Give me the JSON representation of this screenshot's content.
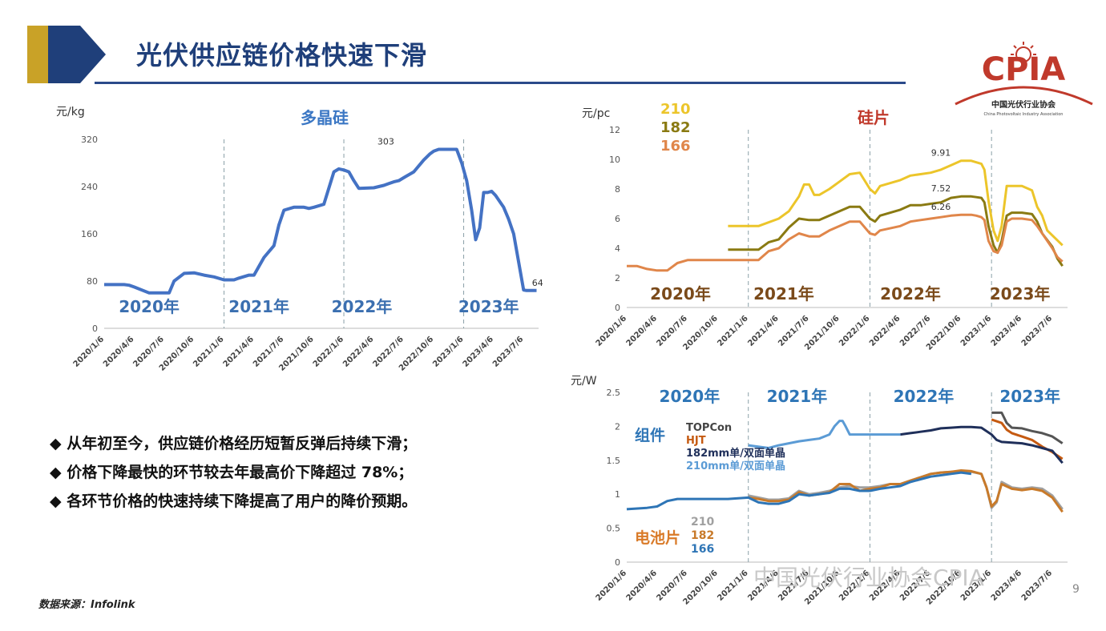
{
  "header": {
    "title": "光伏供应链价格快速下滑",
    "logo_text": "CPIA",
    "logo_cn": "中国光伏行业协会",
    "logo_en": "China Photovoltaic Industry Association",
    "gold": "#c9a227",
    "blue": "#1f3f7a"
  },
  "bullets": [
    "从年初至今，供应链价格经历短暂反弹后持续下滑；",
    "价格下降最快的环节较去年最高价下降超过 78%；",
    "各环节价格的快速持续下降提高了用户的降价预期。"
  ],
  "bullet_symbol": "◆",
  "source": "数据来源：Infolink",
  "watermark": "中国光伏行业协会CPIA",
  "page_number": "9",
  "chart_data": [
    {
      "id": "polysilicon",
      "type": "line",
      "title": "多晶硅",
      "ylabel": "元/kg",
      "ylim": [
        0,
        320
      ],
      "yticks": [
        "0",
        "80",
        "160",
        "240",
        "320"
      ],
      "ytick_values": [
        0,
        80,
        160,
        240,
        320
      ],
      "xlim": [
        0,
        43.5
      ],
      "xticks": [
        "2020/1/6",
        "2020/4/6",
        "2020/7/6",
        "2020/10/6",
        "2021/1/6",
        "2021/4/6",
        "2021/7/6",
        "2021/10/6",
        "2022/1/6",
        "2022/4/6",
        "2022/7/6",
        "2022/10/6",
        "2023/1/6",
        "2023/4/6",
        "2023/7/6"
      ],
      "year_labels": [
        "2020年",
        "2021年",
        "2022年",
        "2023年"
      ],
      "year_label_x": [
        4.5,
        15.5,
        25.8,
        38.5
      ],
      "dividers": [
        12,
        24,
        36
      ],
      "annotations": [
        {
          "text": "303",
          "x": 28.2,
          "y": 303
        },
        {
          "text": "64",
          "x": 43.4,
          "y": 64
        }
      ],
      "color": "#4472c4",
      "series": [
        {
          "name": "多晶硅",
          "x": [
            0,
            2,
            2.5,
            3,
            4.5,
            5,
            5.5,
            6.5,
            7,
            8,
            9,
            10,
            11,
            12,
            13,
            13.5,
            14.5,
            15,
            15.5,
            16,
            17,
            17.5,
            18,
            19,
            19.5,
            20,
            20.5,
            21,
            22,
            23,
            23.5,
            24,
            24.5,
            25,
            25.5,
            27,
            28,
            28.5,
            29,
            29.5,
            30,
            31,
            32,
            32.6,
            33,
            33.5,
            34,
            34.5,
            35,
            35.3,
            35.8,
            36.3,
            36.8,
            37.2,
            37.6,
            38,
            38.4,
            38.8,
            39.2,
            40,
            40.5,
            41,
            42,
            42.3,
            42.7,
            43.3
          ],
          "y": [
            74,
            74,
            73,
            70,
            60,
            60,
            60,
            60,
            80,
            93,
            94,
            90,
            87,
            82,
            82,
            85,
            90,
            90,
            105,
            120,
            140,
            175,
            200,
            205,
            205,
            205,
            203,
            205,
            210,
            265,
            270,
            268,
            265,
            250,
            237,
            238,
            242,
            245,
            248,
            250,
            255,
            265,
            285,
            295,
            300,
            303,
            303,
            303,
            303,
            303,
            280,
            250,
            200,
            150,
            170,
            230,
            230,
            232,
            225,
            205,
            185,
            160,
            65,
            64,
            64,
            64
          ]
        }
      ]
    },
    {
      "id": "wafer",
      "type": "line",
      "title": "硅片",
      "ylabel": "元/pc",
      "ylim": [
        0,
        12
      ],
      "yticks": [
        "0",
        "2",
        "4",
        "6",
        "8",
        "10",
        "12"
      ],
      "ytick_values": [
        0,
        2,
        4,
        6,
        8,
        10,
        12
      ],
      "xlim": [
        0,
        43.5
      ],
      "xticks": [
        "2020/1/6",
        "2020/4/6",
        "2020/7/6",
        "2020/10/6",
        "2021/1/6",
        "2021/4/6",
        "2021/7/6",
        "2021/10/6",
        "2022/1/6",
        "2022/4/6",
        "2022/7/6",
        "2022/10/6",
        "2023/1/6",
        "2023/4/6",
        "2023/7/6"
      ],
      "year_labels": [
        "2020年",
        "2021年",
        "2022年",
        "2023年"
      ],
      "year_label_x": [
        5.3,
        15.5,
        28,
        38.8
      ],
      "dividers": [
        12,
        24,
        36
      ],
      "annotations": [
        {
          "text": "9.91",
          "x": 31,
          "y": 9.91
        },
        {
          "text": "7.52",
          "x": 31,
          "y": 7.52
        },
        {
          "text": "6.26",
          "x": 31,
          "y": 6.26
        }
      ],
      "legend": [
        "210",
        "182",
        "166"
      ],
      "series": [
        {
          "name": "210",
          "color": "#ecc52a",
          "x": [
            10,
            13,
            15,
            16,
            17,
            17.5,
            18,
            18.5,
            19,
            20,
            21,
            22,
            23,
            24,
            24.5,
            25,
            27,
            28,
            29,
            30,
            31,
            32,
            33,
            34,
            34.5,
            35,
            35.3,
            35.7,
            36.2,
            36.6,
            37,
            37.5,
            38,
            39,
            40,
            40.5,
            41,
            41.5,
            43
          ],
          "y": [
            5.5,
            5.5,
            6.0,
            6.5,
            7.5,
            8.3,
            8.3,
            7.6,
            7.6,
            8.0,
            8.5,
            9.0,
            9.1,
            8.0,
            7.7,
            8.2,
            8.6,
            8.9,
            9.0,
            9.1,
            9.3,
            9.6,
            9.9,
            9.9,
            9.8,
            9.7,
            9.3,
            7.2,
            5.2,
            4.5,
            5.5,
            8.2,
            8.2,
            8.2,
            7.9,
            6.8,
            6.2,
            5.2,
            4.2
          ]
        },
        {
          "name": "182",
          "color": "#8a7a12",
          "x": [
            10,
            13,
            14,
            15,
            16,
            17,
            18,
            19,
            20,
            21,
            22,
            23,
            24,
            24.5,
            25,
            27,
            28,
            29,
            30,
            31,
            32,
            33,
            34,
            34.5,
            35,
            35.3,
            35.7,
            36.2,
            36.6,
            37,
            37.5,
            38,
            39,
            40,
            40.5,
            41,
            42,
            42.5,
            43
          ],
          "y": [
            3.9,
            3.9,
            4.4,
            4.6,
            5.4,
            6.0,
            5.9,
            5.9,
            6.2,
            6.5,
            6.8,
            6.8,
            6.0,
            5.8,
            6.2,
            6.6,
            6.9,
            6.9,
            7.0,
            7.1,
            7.4,
            7.5,
            7.5,
            7.45,
            7.4,
            7.1,
            5.5,
            4.2,
            3.7,
            4.5,
            6.2,
            6.4,
            6.4,
            6.3,
            5.8,
            5.0,
            4.1,
            3.3,
            2.8
          ]
        },
        {
          "name": "166",
          "color": "#e0864a",
          "x": [
            0,
            1,
            2,
            3,
            4,
            5,
            6,
            7,
            8,
            9,
            10,
            11,
            12,
            13,
            14,
            15,
            16,
            17,
            18,
            19,
            20,
            21,
            22,
            23,
            24,
            24.5,
            25,
            27,
            28,
            29,
            30,
            31,
            32,
            33,
            34,
            34.5,
            35,
            35.3,
            35.7,
            36.2,
            36.6,
            37,
            37.5,
            38,
            39,
            40,
            40.5,
            41,
            42,
            42.5,
            43
          ],
          "y": [
            2.8,
            2.8,
            2.6,
            2.5,
            2.5,
            3.0,
            3.2,
            3.2,
            3.2,
            3.2,
            3.2,
            3.2,
            3.2,
            3.2,
            3.8,
            4.0,
            4.6,
            5.0,
            4.8,
            4.8,
            5.2,
            5.5,
            5.8,
            5.8,
            5.0,
            4.9,
            5.2,
            5.5,
            5.8,
            5.9,
            6.0,
            6.1,
            6.2,
            6.26,
            6.26,
            6.2,
            6.1,
            5.9,
            4.5,
            3.8,
            3.7,
            4.2,
            5.8,
            6.0,
            6.0,
            5.9,
            5.5,
            5.0,
            4.0,
            3.4,
            3.1
          ]
        }
      ]
    },
    {
      "id": "module-cell",
      "type": "line",
      "title": "",
      "ylabel": "元/W",
      "ylim": [
        0,
        2.5
      ],
      "yticks": [
        "0",
        "0.5",
        "1",
        "1.5",
        "2",
        "2.5"
      ],
      "ytick_values": [
        0,
        0.5,
        1,
        1.5,
        2,
        2.5
      ],
      "xlim": [
        0,
        43.5
      ],
      "xticks": [
        "2020/1/6",
        "2020/4/6",
        "2020/7/6",
        "2020/10/6",
        "2021/1/6",
        "2021/4/6",
        "2021/7/6",
        "2021/10/6",
        "2022/1/6",
        "2022/4/6",
        "2022/7/6",
        "2022/10/6",
        "2023/1/6",
        "2023/4/6",
        "2023/7/6"
      ],
      "year_labels": [
        "2020年",
        "2021年",
        "2022年",
        "2023年"
      ],
      "year_label_x": [
        6.2,
        16.8,
        29.3,
        39.8
      ],
      "dividers": [
        12,
        24,
        36
      ],
      "group_labels": [
        {
          "text": "组件",
          "color": "#2e75b6"
        },
        {
          "text": "电池片",
          "color": "#d97a28"
        }
      ],
      "module_legend": [
        {
          "text": "TOPCon",
          "color": "#444444"
        },
        {
          "text": "HJT",
          "color": "#c55a11"
        },
        {
          "text": "182mm单/双面单晶",
          "color": "#1f2f5a"
        },
        {
          "text": "210mm单/双面单晶",
          "color": "#5b9bd5"
        }
      ],
      "cell_legend": [
        {
          "text": "210",
          "color": "#a0a0a0"
        },
        {
          "text": "182",
          "color": "#c87a2a"
        },
        {
          "text": "166",
          "color": "#2e75b6"
        }
      ],
      "series": [
        {
          "name": "TOPCon",
          "color": "#555555",
          "x": [
            36,
            37,
            37.5,
            38,
            39,
            40,
            41,
            42,
            43
          ],
          "y": [
            2.2,
            2.2,
            2.05,
            1.98,
            1.97,
            1.93,
            1.9,
            1.85,
            1.75
          ]
        },
        {
          "name": "HJT",
          "color": "#c55a11",
          "x": [
            36,
            37,
            37.5,
            38,
            39,
            40,
            41,
            42,
            43
          ],
          "y": [
            2.1,
            2.05,
            1.95,
            1.9,
            1.85,
            1.8,
            1.7,
            1.62,
            1.52
          ]
        },
        {
          "name": "182mm单/双面单晶",
          "color": "#1f2f5a",
          "x": [
            27,
            28,
            29,
            30,
            31,
            32,
            33,
            34,
            35,
            36,
            36.5,
            37,
            38,
            39,
            40,
            41,
            42,
            43
          ],
          "y": [
            1.88,
            1.9,
            1.92,
            1.94,
            1.97,
            1.98,
            1.99,
            1.99,
            1.98,
            1.88,
            1.8,
            1.77,
            1.76,
            1.75,
            1.72,
            1.68,
            1.64,
            1.46
          ]
        },
        {
          "name": "210mm单/双面单晶",
          "color": "#5b9bd5",
          "x": [
            12,
            14,
            15,
            16,
            17,
            18,
            19,
            20,
            20.5,
            21,
            21.3,
            21.6,
            22,
            23,
            24,
            25,
            26,
            27
          ],
          "y": [
            1.72,
            1.68,
            1.72,
            1.75,
            1.78,
            1.8,
            1.82,
            1.88,
            2.0,
            2.08,
            2.08,
            2.0,
            1.88,
            1.88,
            1.88,
            1.88,
            1.88,
            1.88
          ]
        },
        {
          "name": "210电池",
          "color": "#a0a0a0",
          "x": [
            12,
            13,
            14,
            15,
            16,
            17,
            18,
            19,
            20,
            21,
            22,
            23,
            24,
            25,
            26,
            27,
            28,
            29,
            30,
            31,
            32,
            33,
            34,
            35,
            35.5,
            36,
            36.5,
            37,
            38,
            39,
            40,
            41,
            42,
            43
          ],
          "y": [
            0.98,
            0.95,
            0.92,
            0.92,
            0.94,
            1.05,
            1.0,
            1.02,
            1.05,
            1.1,
            1.12,
            1.1,
            1.1,
            1.12,
            1.15,
            1.15,
            1.2,
            1.25,
            1.3,
            1.32,
            1.33,
            1.34,
            1.33,
            1.3,
            1.1,
            0.8,
            0.88,
            1.18,
            1.1,
            1.08,
            1.1,
            1.08,
            0.98,
            0.78
          ]
        },
        {
          "name": "182电池",
          "color": "#c87a2a",
          "x": [
            12,
            13,
            14,
            15,
            16,
            17,
            18,
            19,
            20,
            21,
            22,
            23,
            24,
            25,
            26,
            27,
            28,
            29,
            30,
            31,
            32,
            33,
            34,
            35,
            35.5,
            36,
            36.5,
            37,
            38,
            39,
            40,
            41,
            42,
            43
          ],
          "y": [
            0.95,
            0.93,
            0.9,
            0.9,
            0.92,
            1.03,
            0.98,
            1.0,
            1.03,
            1.15,
            1.15,
            1.05,
            1.08,
            1.1,
            1.15,
            1.15,
            1.2,
            1.25,
            1.3,
            1.32,
            1.33,
            1.35,
            1.34,
            1.3,
            1.1,
            0.82,
            0.9,
            1.15,
            1.08,
            1.06,
            1.08,
            1.05,
            0.95,
            0.74
          ]
        },
        {
          "name": "166电池",
          "color": "#2e75b6",
          "x": [
            0,
            2,
            3,
            4,
            5,
            6,
            8,
            10,
            12,
            13,
            14,
            15,
            16,
            17,
            18,
            19,
            20,
            21,
            22,
            23,
            24,
            25,
            26,
            27,
            28,
            29,
            30,
            31,
            32,
            33,
            34
          ],
          "y": [
            0.78,
            0.8,
            0.82,
            0.9,
            0.93,
            0.93,
            0.93,
            0.93,
            0.95,
            0.88,
            0.86,
            0.86,
            0.9,
            1.0,
            0.98,
            1.0,
            1.02,
            1.08,
            1.08,
            1.05,
            1.05,
            1.08,
            1.1,
            1.12,
            1.18,
            1.22,
            1.26,
            1.28,
            1.3,
            1.32,
            1.3
          ]
        }
      ]
    }
  ]
}
